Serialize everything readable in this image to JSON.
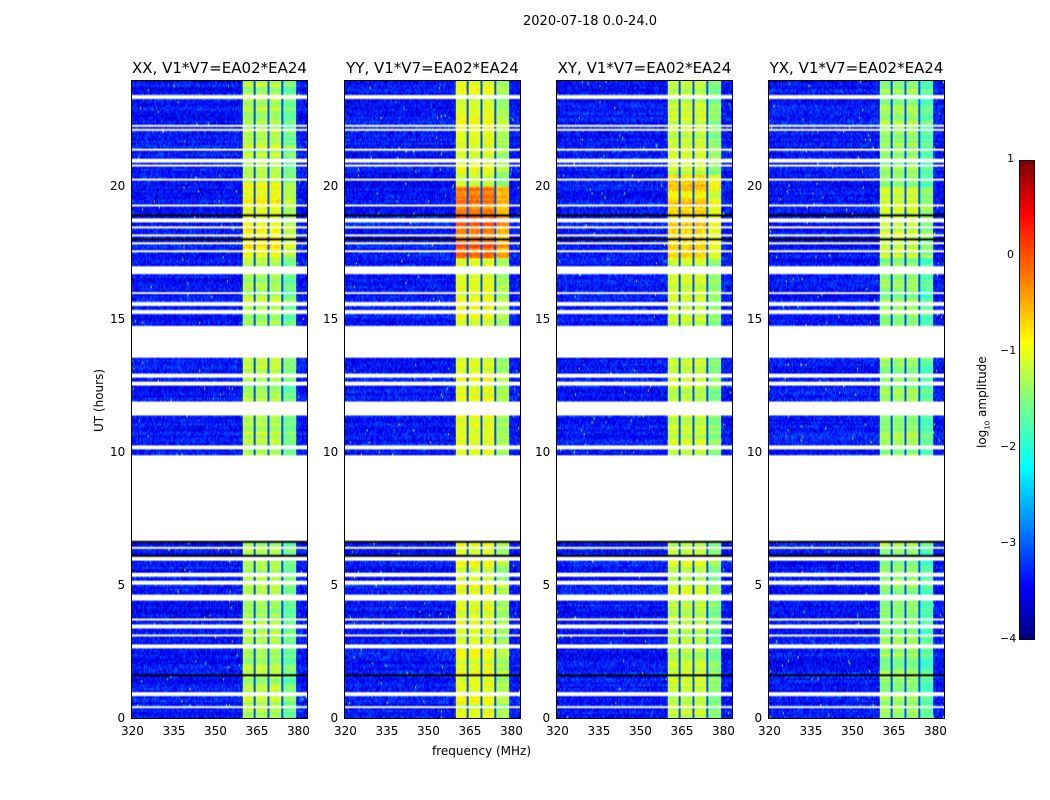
{
  "chart_data": {
    "type": "heatmap",
    "title": "2020-07-18 0.0-24.0",
    "xlabel": "frequency (MHz)",
    "ylabel": "UT (hours)",
    "xlim": [
      320,
      384
    ],
    "ylim": [
      0,
      24
    ],
    "xticks": [
      320,
      335,
      350,
      365,
      380
    ],
    "yticks": [
      0,
      5,
      10,
      15,
      20
    ],
    "colormap": "jet",
    "colorbar": {
      "label": "log10 amplitude",
      "label_main": "log",
      "label_sub": "10",
      "label_rest": " amplitude",
      "range": [
        -4,
        1
      ],
      "ticks": [
        1,
        0,
        -1,
        -2,
        -3,
        -4
      ],
      "tick_labels": [
        "1",
        "0",
        "−1",
        "−2",
        "−3",
        "−4"
      ]
    },
    "band": {
      "freq_range": [
        360.5,
        380
      ],
      "subband_edges": [
        365,
        370,
        375
      ]
    },
    "background_level": -3.3,
    "flagged_ranges_hours": [
      [
        6.7,
        9.9
      ],
      [
        11.4,
        11.95
      ],
      [
        13.55,
        14.78
      ],
      [
        16.7,
        17.0
      ]
    ],
    "flagged_lines_hours": [
      23.4,
      22.3,
      22.15,
      21.4,
      21.0,
      20.8,
      20.3,
      19.3,
      18.75,
      18.5,
      18.2,
      17.9,
      17.6,
      16.0,
      15.6,
      15.3,
      12.6,
      12.9,
      10.2,
      6.4,
      6.0,
      5.4,
      5.1,
      4.6,
      4.5,
      3.7,
      3.5,
      3.4,
      3.1,
      2.7,
      0.9,
      0.4
    ],
    "dark_lines_hours": [
      18.95,
      18.05,
      6.65,
      6.1,
      2.4,
      1.6
    ],
    "panels": [
      {
        "title": "XX, V1*V7=EA02*EA24",
        "band_level": -1.25,
        "hot_level": -0.9,
        "hot_range": [
          17.3,
          20.2
        ]
      },
      {
        "title": "YY, V1*V7=EA02*EA24",
        "band_level": -1.0,
        "hot_level": -0.2,
        "hot_range": [
          17.3,
          20.0
        ]
      },
      {
        "title": "XY, V1*V7=EA02*EA24",
        "band_level": -1.15,
        "hot_level": -0.7,
        "hot_range": [
          17.3,
          20.5
        ]
      },
      {
        "title": "YX, V1*V7=EA02*EA24",
        "band_level": -1.4,
        "hot_level": -1.1,
        "hot_range": [
          17.3,
          20.0
        ]
      }
    ]
  }
}
